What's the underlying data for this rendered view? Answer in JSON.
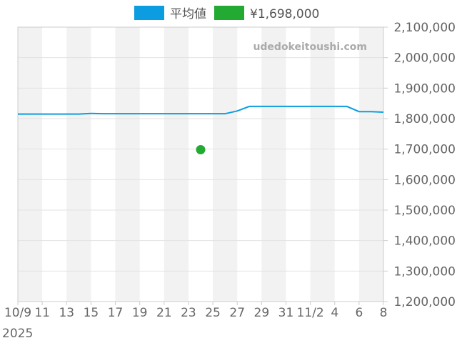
{
  "watermark": "udedokeitoushi.com",
  "legend": [
    {
      "label": "平均値",
      "color": "#0b9de0"
    },
    {
      "label": "¥1,698,000",
      "color": "#22aa33"
    }
  ],
  "chart_data": {
    "type": "line",
    "y_axis_position": "right",
    "ylim": [
      1200000,
      2100000
    ],
    "y_ticks": [
      "2,100,000",
      "2,000,000",
      "1,900,000",
      "1,800,000",
      "1,700,000",
      "1,600,000",
      "1,500,000",
      "1,400,000",
      "1,300,000",
      "1,200,000"
    ],
    "x_tick_labels": [
      "10/9",
      "11",
      "13",
      "15",
      "17",
      "19",
      "21",
      "23",
      "25",
      "27",
      "29",
      "31",
      "11/2",
      "4",
      "6",
      "8"
    ],
    "x_year_label": "2025",
    "x_dates": [
      "2025-10-09",
      "2025-10-10",
      "2025-10-11",
      "2025-10-12",
      "2025-10-13",
      "2025-10-14",
      "2025-10-15",
      "2025-10-16",
      "2025-10-17",
      "2025-10-18",
      "2025-10-19",
      "2025-10-20",
      "2025-10-21",
      "2025-10-22",
      "2025-10-23",
      "2025-10-24",
      "2025-10-25",
      "2025-10-26",
      "2025-10-27",
      "2025-10-28",
      "2025-10-29",
      "2025-10-30",
      "2025-10-31",
      "2025-11-01",
      "2025-11-02",
      "2025-11-03",
      "2025-11-04",
      "2025-11-05",
      "2025-11-06",
      "2025-11-07",
      "2025-11-08"
    ],
    "series": [
      {
        "name": "平均値",
        "color": "#0b9de0",
        "values": [
          1815000,
          1815000,
          1815000,
          1815000,
          1815000,
          1815000,
          1817000,
          1816000,
          1816000,
          1816000,
          1816000,
          1816000,
          1816000,
          1816000,
          1816000,
          1816000,
          1816000,
          1816000,
          1825000,
          1840000,
          1840000,
          1840000,
          1840000,
          1840000,
          1840000,
          1840000,
          1840000,
          1840000,
          1823000,
          1823000,
          1821000
        ]
      },
      {
        "name": "¥1,698,000",
        "color": "#22aa33",
        "type": "scatter",
        "points": [
          {
            "x": "2025-10-24",
            "y": 1698000
          }
        ]
      }
    ],
    "grid": true
  }
}
